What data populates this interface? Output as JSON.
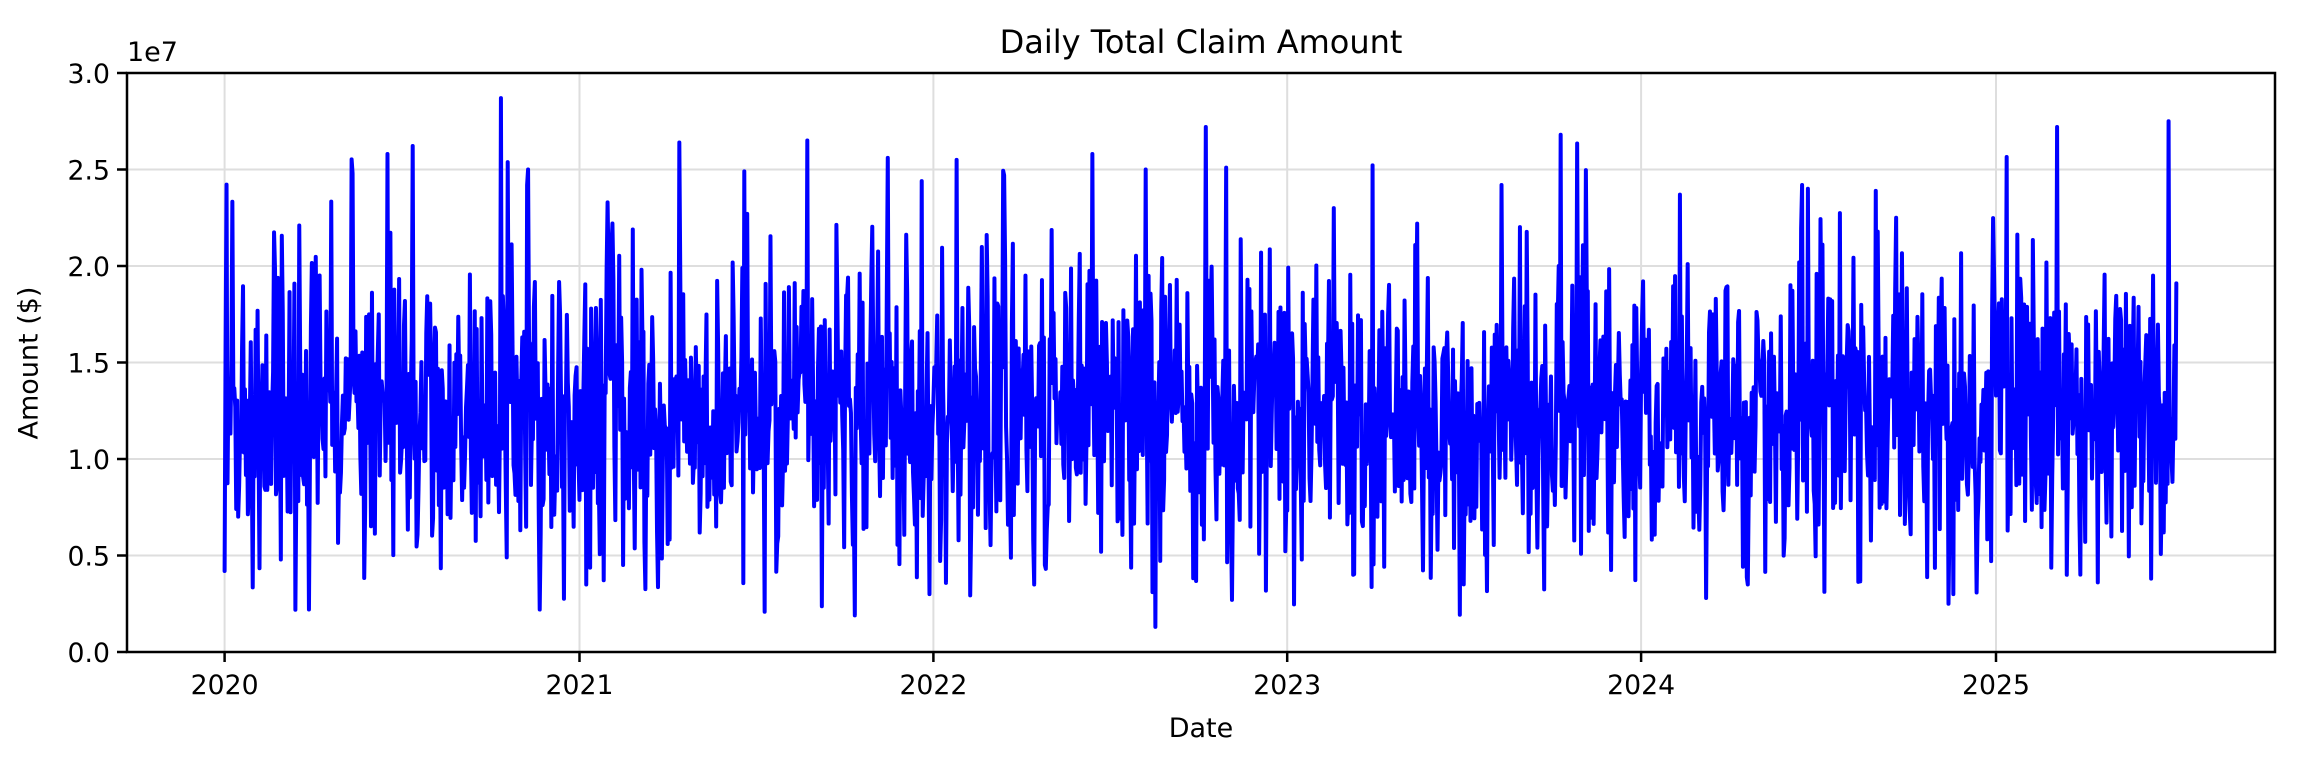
{
  "chart_data": {
    "type": "line",
    "title": "Daily Total Claim Amount",
    "xlabel": "Date",
    "ylabel": "Amount ($)",
    "y_offset_text": "1e7",
    "x_tick_labels": [
      "2020",
      "2021",
      "2022",
      "2023",
      "2024",
      "2025"
    ],
    "x_tick_dates": [
      "2020-01-01",
      "2021-01-01",
      "2022-01-01",
      "2023-01-01",
      "2024-01-01",
      "2025-01-01"
    ],
    "y_tick_labels": [
      "0.0",
      "0.5",
      "1.0",
      "1.5",
      "2.0",
      "2.5",
      "3.0"
    ],
    "y_tick_values": [
      0,
      5000000,
      10000000,
      15000000,
      20000000,
      25000000,
      30000000
    ],
    "ylim": [
      0,
      30000000
    ],
    "xlim_dates": [
      "2019-09-22",
      "2025-10-14"
    ],
    "grid": true,
    "legend_position": "none",
    "line_color": "#0000ff",
    "grid_color": "#dedede",
    "axis_color": "#000000",
    "background_color": "#ffffff",
    "series": [
      {
        "name": "Daily Total Claim Amount",
        "frequency": "daily",
        "start_date": "2020-01-01",
        "end_date": "2025-07-06",
        "n_points": 2014,
        "approx_mean": 12300000,
        "approx_std": 4000000,
        "observed_min": {
          "date": "2022-08-18",
          "value": 1300000
        },
        "observed_max": {
          "date": "2020-10-12",
          "value": 28700000
        },
        "generator_seed": 20200101,
        "notable_peaks": [
          {
            "date": "2020-03-18",
            "value": 22100000
          },
          {
            "date": "2020-05-12",
            "value": 24800000
          },
          {
            "date": "2020-06-17",
            "value": 25800000
          },
          {
            "date": "2020-10-12",
            "value": 28700000
          },
          {
            "date": "2020-11-08",
            "value": 24200000
          },
          {
            "date": "2021-02-04",
            "value": 22200000
          },
          {
            "date": "2021-04-14",
            "value": 26400000
          },
          {
            "date": "2021-06-20",
            "value": 24900000
          },
          {
            "date": "2021-08-24",
            "value": 26500000
          },
          {
            "date": "2021-11-15",
            "value": 25600000
          },
          {
            "date": "2021-12-20",
            "value": 24400000
          },
          {
            "date": "2022-01-25",
            "value": 25500000
          },
          {
            "date": "2022-03-15",
            "value": 24700000
          },
          {
            "date": "2022-06-14",
            "value": 25800000
          },
          {
            "date": "2022-08-08",
            "value": 25000000
          },
          {
            "date": "2022-10-09",
            "value": 27200000
          },
          {
            "date": "2022-10-30",
            "value": 25100000
          },
          {
            "date": "2023-02-18",
            "value": 23000000
          },
          {
            "date": "2023-08-10",
            "value": 24200000
          },
          {
            "date": "2023-10-10",
            "value": 26800000
          },
          {
            "date": "2024-02-10",
            "value": 23700000
          },
          {
            "date": "2024-06-15",
            "value": 24200000
          },
          {
            "date": "2024-09-20",
            "value": 22500000
          },
          {
            "date": "2025-03-05",
            "value": 27200000
          },
          {
            "date": "2025-06-28",
            "value": 27500000
          }
        ],
        "notable_dips": [
          {
            "date": "2020-01-01",
            "value": 4200000
          },
          {
            "date": "2020-03-28",
            "value": 2200000
          },
          {
            "date": "2020-11-21",
            "value": 2200000
          },
          {
            "date": "2021-01-08",
            "value": 3500000
          },
          {
            "date": "2021-10-12",
            "value": 1900000
          },
          {
            "date": "2021-12-28",
            "value": 3000000
          },
          {
            "date": "2022-04-15",
            "value": 3500000
          },
          {
            "date": "2022-08-18",
            "value": 1300000
          },
          {
            "date": "2022-11-05",
            "value": 2700000
          },
          {
            "date": "2023-03-10",
            "value": 4000000
          },
          {
            "date": "2024-03-08",
            "value": 2800000
          },
          {
            "date": "2024-04-20",
            "value": 3500000
          },
          {
            "date": "2024-11-18",
            "value": 3000000
          },
          {
            "date": "2025-03-15",
            "value": 4000000
          },
          {
            "date": "2025-06-10",
            "value": 3800000
          }
        ]
      }
    ]
  }
}
